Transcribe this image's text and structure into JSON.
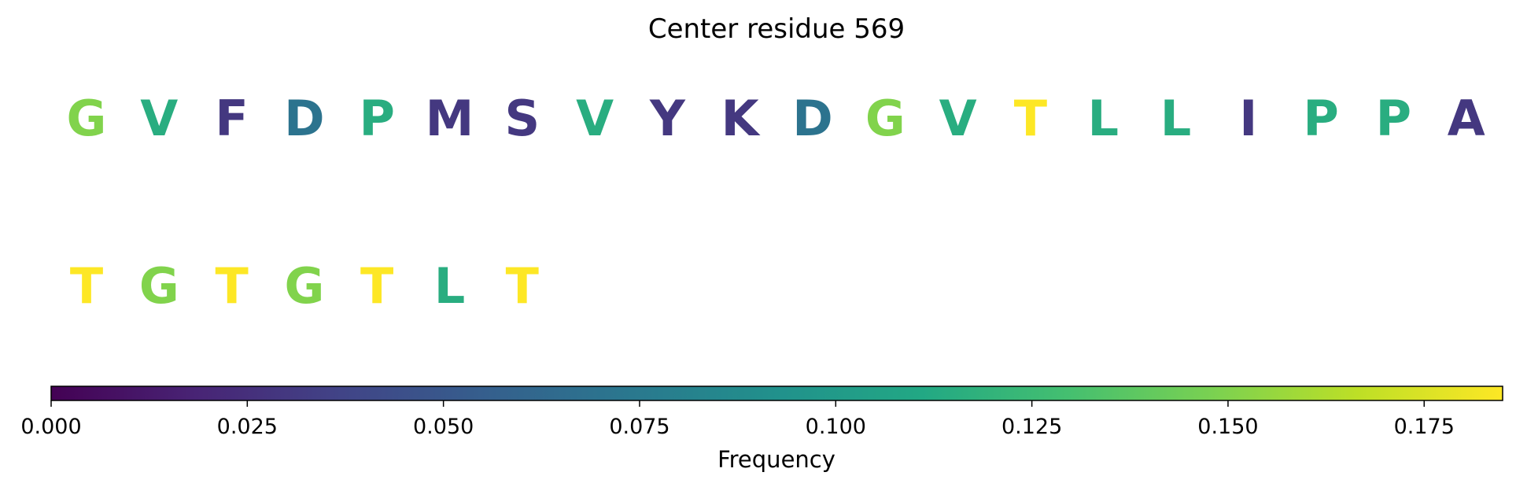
{
  "chart_data": {
    "type": "heatmap",
    "title": "Center residue 569",
    "xlabel": "Frequency",
    "colormap": "viridis",
    "ylim": [
      0,
      0.185
    ],
    "tick_values": [
      0.0,
      0.025,
      0.05,
      0.075,
      0.1,
      0.125,
      0.15,
      0.175
    ],
    "tick_labels": [
      "0.000",
      "0.025",
      "0.050",
      "0.075",
      "0.100",
      "0.125",
      "0.150",
      "0.175"
    ],
    "rows": [
      {
        "residues": [
          "G",
          "V",
          "F",
          "D",
          "P",
          "M",
          "S",
          "V",
          "Y",
          "K",
          "D",
          "G",
          "V",
          "T",
          "L",
          "L",
          "I",
          "P",
          "P",
          "A"
        ],
        "values": [
          0.15,
          0.115,
          0.03,
          0.07,
          0.115,
          0.03,
          0.03,
          0.115,
          0.03,
          0.03,
          0.07,
          0.15,
          0.115,
          0.185,
          0.115,
          0.115,
          0.03,
          0.115,
          0.115,
          0.03
        ]
      },
      {
        "residues": [
          "T",
          "G",
          "T",
          "G",
          "T",
          "L",
          "T"
        ],
        "values": [
          0.185,
          0.15,
          0.185,
          0.15,
          0.185,
          0.115,
          0.185
        ]
      }
    ]
  }
}
